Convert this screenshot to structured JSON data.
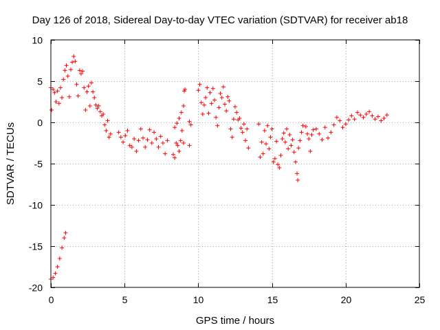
{
  "chart_data": {
    "type": "scatter",
    "title": "Day 126 of 2018, Sidereal Day-to-day VTEC variation (SDTVAR) for receiver ab18",
    "xlabel": "GPS time / hours",
    "ylabel": "SDTVAR / TECUs",
    "xlim": [
      0,
      25
    ],
    "ylim": [
      -20,
      10
    ],
    "xticks": [
      0,
      5,
      10,
      15,
      20,
      25
    ],
    "yticks": [
      10,
      5,
      0,
      -5,
      -10,
      -15,
      -20
    ],
    "xtick_labels": [
      "0",
      "5",
      "10",
      "15",
      "20",
      "25"
    ],
    "ytick_labels": [
      "10",
      "5",
      "0",
      "-5",
      "-10",
      "-15",
      "-20"
    ],
    "grid": true,
    "legend": "none",
    "marker": "+",
    "color": "#ff0000",
    "series": [
      {
        "name": "SDTVAR",
        "points": [
          [
            0.0,
            -19.0
          ],
          [
            0.15,
            -18.8
          ],
          [
            0.3,
            -18.3
          ],
          [
            0.45,
            -17.5
          ],
          [
            0.6,
            -16.5
          ],
          [
            0.75,
            -15.2
          ],
          [
            0.9,
            -14.0
          ],
          [
            1.0,
            -13.4
          ],
          [
            0.0,
            4.2
          ],
          [
            0.05,
            1.5
          ],
          [
            0.15,
            4.0
          ],
          [
            0.25,
            3.6
          ],
          [
            0.35,
            2.5
          ],
          [
            0.45,
            3.8
          ],
          [
            0.55,
            2.3
          ],
          [
            0.65,
            4.2
          ],
          [
            0.75,
            3.0
          ],
          [
            0.85,
            5.2
          ],
          [
            0.95,
            6.3
          ],
          [
            1.05,
            6.9
          ],
          [
            1.15,
            5.6
          ],
          [
            1.25,
            3.1
          ],
          [
            1.35,
            6.4
          ],
          [
            1.45,
            7.3
          ],
          [
            1.55,
            8.0
          ],
          [
            1.65,
            7.4
          ],
          [
            1.75,
            4.6
          ],
          [
            1.85,
            3.2
          ],
          [
            1.95,
            6.3
          ],
          [
            2.05,
            5.9
          ],
          [
            2.15,
            6.2
          ],
          [
            2.25,
            4.2
          ],
          [
            2.35,
            1.5
          ],
          [
            2.45,
            3.7
          ],
          [
            2.55,
            4.4
          ],
          [
            2.65,
            2.0
          ],
          [
            2.75,
            4.8
          ],
          [
            2.85,
            3.7
          ],
          [
            2.95,
            3.0
          ],
          [
            3.05,
            2.1
          ],
          [
            3.15,
            1.7
          ],
          [
            3.25,
            2.0
          ],
          [
            3.35,
            1.3
          ],
          [
            3.45,
            0.8
          ],
          [
            3.55,
            1.0
          ],
          [
            3.65,
            -0.3
          ],
          [
            3.75,
            -1.0
          ],
          [
            3.85,
            0.2
          ],
          [
            3.95,
            -1.8
          ],
          [
            4.05,
            -1.4
          ],
          [
            4.6,
            -1.2
          ],
          [
            4.75,
            -1.8
          ],
          [
            4.9,
            -2.4
          ],
          [
            5.05,
            -1.6
          ],
          [
            5.2,
            -1.0
          ],
          [
            5.35,
            -2.8
          ],
          [
            5.5,
            -3.0
          ],
          [
            5.65,
            -2.0
          ],
          [
            5.8,
            -3.5
          ],
          [
            5.95,
            -2.2
          ],
          [
            6.1,
            -0.8
          ],
          [
            6.25,
            -1.9
          ],
          [
            6.4,
            -3.0
          ],
          [
            6.55,
            -2.1
          ],
          [
            6.7,
            -0.9
          ],
          [
            6.85,
            -2.5
          ],
          [
            7.0,
            -1.2
          ],
          [
            7.15,
            -2.0
          ],
          [
            7.3,
            -3.0
          ],
          [
            7.45,
            -1.7
          ],
          [
            7.6,
            -2.5
          ],
          [
            7.75,
            -3.8
          ],
          [
            7.9,
            -2.2
          ],
          [
            8.3,
            -3.9
          ],
          [
            8.4,
            -4.3
          ],
          [
            8.5,
            -2.5
          ],
          [
            8.6,
            -2.8
          ],
          [
            8.7,
            -3.5
          ],
          [
            8.8,
            -2.2
          ],
          [
            8.9,
            -1.0
          ],
          [
            9.0,
            -2.5
          ],
          [
            8.4,
            -0.6
          ],
          [
            8.55,
            -0.1
          ],
          [
            8.7,
            0.5
          ],
          [
            8.85,
            1.2
          ],
          [
            9.0,
            2.0
          ],
          [
            9.05,
            3.8
          ],
          [
            9.1,
            4.0
          ],
          [
            9.4,
            0.1
          ],
          [
            9.4,
            -2.8
          ],
          [
            9.5,
            -0.3
          ],
          [
            10.0,
            3.9
          ],
          [
            10.1,
            4.6
          ],
          [
            10.2,
            2.4
          ],
          [
            10.3,
            1.0
          ],
          [
            10.4,
            2.1
          ],
          [
            10.5,
            3.0
          ],
          [
            10.6,
            4.2
          ],
          [
            10.7,
            1.1
          ],
          [
            10.8,
            3.6
          ],
          [
            10.9,
            2.3
          ],
          [
            11.0,
            4.1
          ],
          [
            11.1,
            2.7
          ],
          [
            11.2,
            0.6
          ],
          [
            11.3,
            -0.4
          ],
          [
            11.4,
            1.8
          ],
          [
            11.5,
            3.5
          ],
          [
            11.6,
            3.0
          ],
          [
            11.7,
            4.3
          ],
          [
            11.8,
            2.2
          ],
          [
            11.9,
            1.4
          ],
          [
            12.0,
            3.1
          ],
          [
            12.1,
            2.6
          ],
          [
            12.2,
            -0.8
          ],
          [
            12.3,
            -1.8
          ],
          [
            12.4,
            0.4
          ],
          [
            12.5,
            1.9
          ],
          [
            12.6,
            1.2
          ],
          [
            12.7,
            0.3
          ],
          [
            12.8,
            0.5
          ],
          [
            12.9,
            -0.7
          ],
          [
            13.0,
            -1.2
          ],
          [
            13.1,
            -0.2
          ],
          [
            13.2,
            -2.2
          ],
          [
            13.3,
            -0.8
          ],
          [
            13.4,
            -3.1
          ],
          [
            14.1,
            -0.2
          ],
          [
            14.2,
            -4.2
          ],
          [
            14.3,
            -2.4
          ],
          [
            14.4,
            -3.8
          ],
          [
            14.5,
            -1.0
          ],
          [
            14.6,
            -2.6
          ],
          [
            14.7,
            -0.4
          ],
          [
            14.8,
            -3.2
          ],
          [
            14.9,
            -1.8
          ],
          [
            15.0,
            -0.8
          ],
          [
            15.1,
            -4.8
          ],
          [
            15.2,
            -4.4
          ],
          [
            15.3,
            -2.3
          ],
          [
            15.4,
            -5.1
          ],
          [
            15.5,
            -5.5
          ],
          [
            15.6,
            -4.0
          ],
          [
            15.7,
            -2.0
          ],
          [
            15.8,
            -1.3
          ],
          [
            15.9,
            -2.4
          ],
          [
            16.0,
            -0.8
          ],
          [
            16.1,
            -3.2
          ],
          [
            16.2,
            -1.5
          ],
          [
            16.3,
            -2.8
          ],
          [
            16.4,
            -2.1
          ],
          [
            16.5,
            -3.6
          ],
          [
            16.6,
            -4.8
          ],
          [
            16.7,
            -6.2
          ],
          [
            16.75,
            -7.0
          ],
          [
            16.8,
            -3.1
          ],
          [
            16.9,
            -2.2
          ],
          [
            17.0,
            -1.2
          ],
          [
            17.1,
            -0.4
          ],
          [
            17.3,
            -0.5
          ],
          [
            17.4,
            -1.4
          ],
          [
            17.5,
            -2.0
          ],
          [
            17.6,
            -3.5
          ],
          [
            17.7,
            -1.5
          ],
          [
            17.8,
            -0.9
          ],
          [
            18.0,
            -0.8
          ],
          [
            18.2,
            -1.4
          ],
          [
            18.4,
            -2.1
          ],
          [
            18.6,
            -0.6
          ],
          [
            18.8,
            -1.9
          ],
          [
            19.0,
            -1.2
          ],
          [
            19.2,
            -0.3
          ],
          [
            19.4,
            0.6
          ],
          [
            19.6,
            0.2
          ],
          [
            19.8,
            -0.6
          ],
          [
            20.0,
            -0.2
          ],
          [
            20.2,
            0.3
          ],
          [
            20.4,
            0.8
          ],
          [
            20.6,
            0.4
          ],
          [
            20.8,
            1.2
          ],
          [
            21.0,
            0.9
          ],
          [
            21.2,
            0.6
          ],
          [
            21.4,
            1.0
          ],
          [
            21.6,
            1.3
          ],
          [
            21.8,
            0.8
          ],
          [
            22.0,
            0.4
          ],
          [
            22.2,
            0.7
          ],
          [
            22.4,
            0.2
          ],
          [
            22.6,
            0.5
          ],
          [
            22.8,
            0.9
          ]
        ]
      }
    ]
  }
}
